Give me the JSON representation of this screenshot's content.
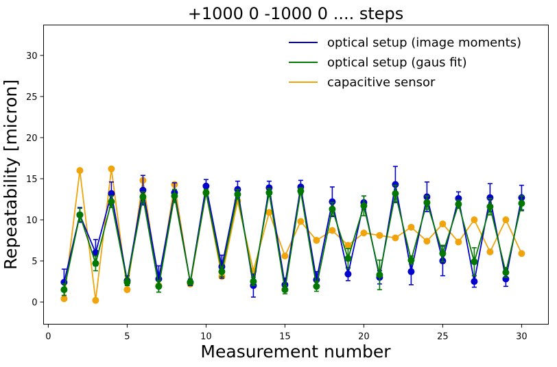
{
  "chart_data": {
    "type": "line",
    "title": "+1000 0 -1000 0 .... steps",
    "xlabel": "Measurement number",
    "ylabel": "Repeatability [micron]",
    "xlim": [
      -0.3,
      31.7
    ],
    "ylim": [
      -2.7,
      33.7
    ],
    "xticks": [
      0,
      5,
      10,
      15,
      20,
      25,
      30
    ],
    "yticks": [
      0,
      5,
      10,
      15,
      20,
      25,
      30
    ],
    "grid": false,
    "legend_position": "top-right",
    "x": [
      1,
      2,
      3,
      4,
      5,
      6,
      7,
      8,
      9,
      10,
      11,
      12,
      13,
      14,
      15,
      16,
      17,
      18,
      19,
      20,
      21,
      22,
      23,
      24,
      25,
      26,
      27,
      28,
      29,
      30
    ],
    "series": [
      {
        "name": "optical setup (image moments)",
        "color": "#0000cc",
        "values": [
          2.4,
          10.6,
          6.0,
          13.2,
          2.6,
          13.6,
          2.8,
          13.3,
          2.4,
          14.1,
          4.3,
          13.7,
          2.0,
          13.9,
          2.1,
          14.0,
          2.7,
          12.2,
          3.4,
          12.1,
          3.0,
          14.3,
          3.7,
          12.8,
          5.0,
          12.6,
          2.5,
          12.7,
          2.8,
          12.7
        ],
        "errors": [
          1.6,
          0.9,
          1.6,
          1.4,
          0.6,
          1.8,
          1.6,
          1.2,
          0.4,
          0.8,
          1.4,
          1.0,
          1.4,
          0.8,
          0.8,
          0.8,
          1.0,
          1.8,
          0.8,
          0.8,
          0.8,
          2.2,
          1.6,
          1.8,
          1.8,
          0.8,
          0.7,
          1.7,
          0.9,
          1.5
        ]
      },
      {
        "name": "optical setup (gaus fit)",
        "color": "#007700",
        "values": [
          1.5,
          10.6,
          4.7,
          12.2,
          2.4,
          12.8,
          1.9,
          12.9,
          2.4,
          13.3,
          3.7,
          13.1,
          2.5,
          13.3,
          1.5,
          13.5,
          1.9,
          11.3,
          5.3,
          11.7,
          3.3,
          13.2,
          5.1,
          12.1,
          5.9,
          11.9,
          4.9,
          11.6,
          3.6,
          12.0
        ],
        "errors": [
          0.7,
          0.8,
          0.9,
          0.7,
          0.4,
          0.6,
          0.7,
          0.8,
          0.3,
          0.4,
          0.6,
          0.6,
          0.5,
          0.5,
          0.5,
          0.4,
          0.6,
          0.8,
          1.2,
          1.2,
          1.8,
          1.0,
          0.5,
          0.8,
          1.0,
          0.5,
          1.7,
          1.0,
          0.6,
          0.9
        ]
      },
      {
        "name": "capacitive sensor",
        "color": "#f0a30a",
        "values": [
          0.4,
          16.0,
          0.2,
          16.2,
          1.5,
          14.8,
          2.0,
          14.3,
          2.2,
          13.3,
          3.1,
          12.3,
          3.8,
          10.9,
          5.6,
          9.8,
          7.5,
          8.7,
          6.9,
          8.4,
          8.1,
          7.8,
          9.1,
          7.4,
          9.5,
          7.3,
          10.0,
          6.1,
          10.0,
          5.9
        ]
      }
    ]
  }
}
